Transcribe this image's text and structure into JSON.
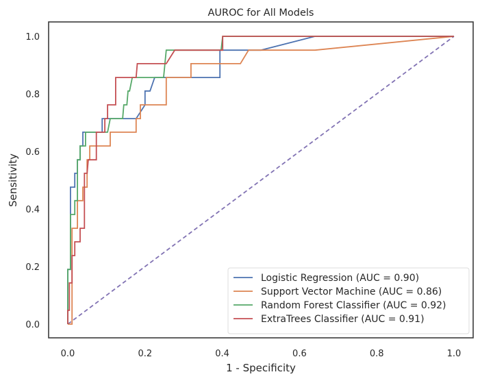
{
  "chart_data": {
    "type": "line",
    "title": "AUROC for All Models",
    "xlabel": "1 - Specificity",
    "ylabel": "Sensitivity",
    "xlim": [
      -0.05,
      1.05
    ],
    "ylim": [
      -0.05,
      1.05
    ],
    "xticks": [
      "0.0",
      "0.2",
      "0.4",
      "0.6",
      "0.8",
      "1.0"
    ],
    "yticks": [
      "0.0",
      "0.2",
      "0.4",
      "0.6",
      "0.8",
      "1.0"
    ],
    "grid": false,
    "legend_position": "bottom-right",
    "series": [
      {
        "name": "Logistic Regression (AUC = 0.90)",
        "color": "#4c72b0",
        "x": [
          0.0,
          0.0,
          0.007,
          0.007,
          0.018,
          0.018,
          0.025,
          0.025,
          0.032,
          0.032,
          0.039,
          0.039,
          0.046,
          0.046,
          0.064,
          0.064,
          0.089,
          0.089,
          0.103,
          0.103,
          0.177,
          0.2,
          0.2,
          0.213,
          0.225,
          0.245,
          0.394,
          0.394,
          0.5,
          0.64,
          1.0
        ],
        "y": [
          0.0,
          0.19,
          0.19,
          0.476,
          0.476,
          0.524,
          0.524,
          0.571,
          0.571,
          0.619,
          0.619,
          0.667,
          0.667,
          0.667,
          0.667,
          0.667,
          0.667,
          0.714,
          0.714,
          0.714,
          0.714,
          0.762,
          0.81,
          0.81,
          0.857,
          0.857,
          0.857,
          0.952,
          0.952,
          1.0,
          1.0
        ]
      },
      {
        "name": "Support Vector Machine (AUC = 0.86)",
        "color": "#dd8452",
        "x": [
          0.0,
          0.0,
          0.011,
          0.011,
          0.025,
          0.025,
          0.039,
          0.039,
          0.05,
          0.05,
          0.057,
          0.057,
          0.11,
          0.11,
          0.177,
          0.177,
          0.188,
          0.188,
          0.255,
          0.255,
          0.319,
          0.319,
          0.447,
          0.468,
          0.64,
          1.0
        ],
        "y": [
          0.0,
          0.0,
          0.0,
          0.333,
          0.333,
          0.429,
          0.429,
          0.476,
          0.476,
          0.571,
          0.571,
          0.619,
          0.619,
          0.667,
          0.667,
          0.714,
          0.714,
          0.762,
          0.762,
          0.857,
          0.857,
          0.905,
          0.905,
          0.952,
          0.952,
          1.0
        ]
      },
      {
        "name": "Random Forest Classifier (AUC = 0.92)",
        "color": "#55a868",
        "x": [
          0.0,
          0.0,
          0.007,
          0.007,
          0.018,
          0.018,
          0.025,
          0.025,
          0.032,
          0.032,
          0.046,
          0.046,
          0.057,
          0.057,
          0.103,
          0.11,
          0.142,
          0.145,
          0.153,
          0.156,
          0.16,
          0.167,
          0.248,
          0.255,
          0.397,
          0.401,
          1.0
        ],
        "y": [
          0.0,
          0.19,
          0.19,
          0.381,
          0.381,
          0.429,
          0.429,
          0.571,
          0.571,
          0.619,
          0.619,
          0.667,
          0.667,
          0.667,
          0.667,
          0.714,
          0.714,
          0.762,
          0.762,
          0.81,
          0.81,
          0.857,
          0.857,
          0.952,
          0.952,
          1.0,
          1.0
        ]
      },
      {
        "name": "ExtraTrees Classifier (AUC = 0.91)",
        "color": "#c44e52",
        "x": [
          0.0,
          0.0,
          0.004,
          0.004,
          0.011,
          0.011,
          0.018,
          0.018,
          0.032,
          0.032,
          0.043,
          0.043,
          0.05,
          0.053,
          0.064,
          0.064,
          0.074,
          0.074,
          0.096,
          0.096,
          0.103,
          0.103,
          0.124,
          0.124,
          0.177,
          0.18,
          0.255,
          0.277,
          0.401,
          0.401,
          1.0
        ],
        "y": [
          0.0,
          0.048,
          0.048,
          0.143,
          0.143,
          0.238,
          0.238,
          0.286,
          0.286,
          0.333,
          0.333,
          0.524,
          0.524,
          0.571,
          0.571,
          0.571,
          0.571,
          0.667,
          0.667,
          0.714,
          0.714,
          0.762,
          0.762,
          0.857,
          0.857,
          0.905,
          0.905,
          0.952,
          0.952,
          1.0,
          1.0
        ]
      }
    ],
    "reference_line": {
      "color": "#8172b3",
      "style": "dashed",
      "x": [
        0,
        1
      ],
      "y": [
        0,
        1
      ]
    }
  }
}
